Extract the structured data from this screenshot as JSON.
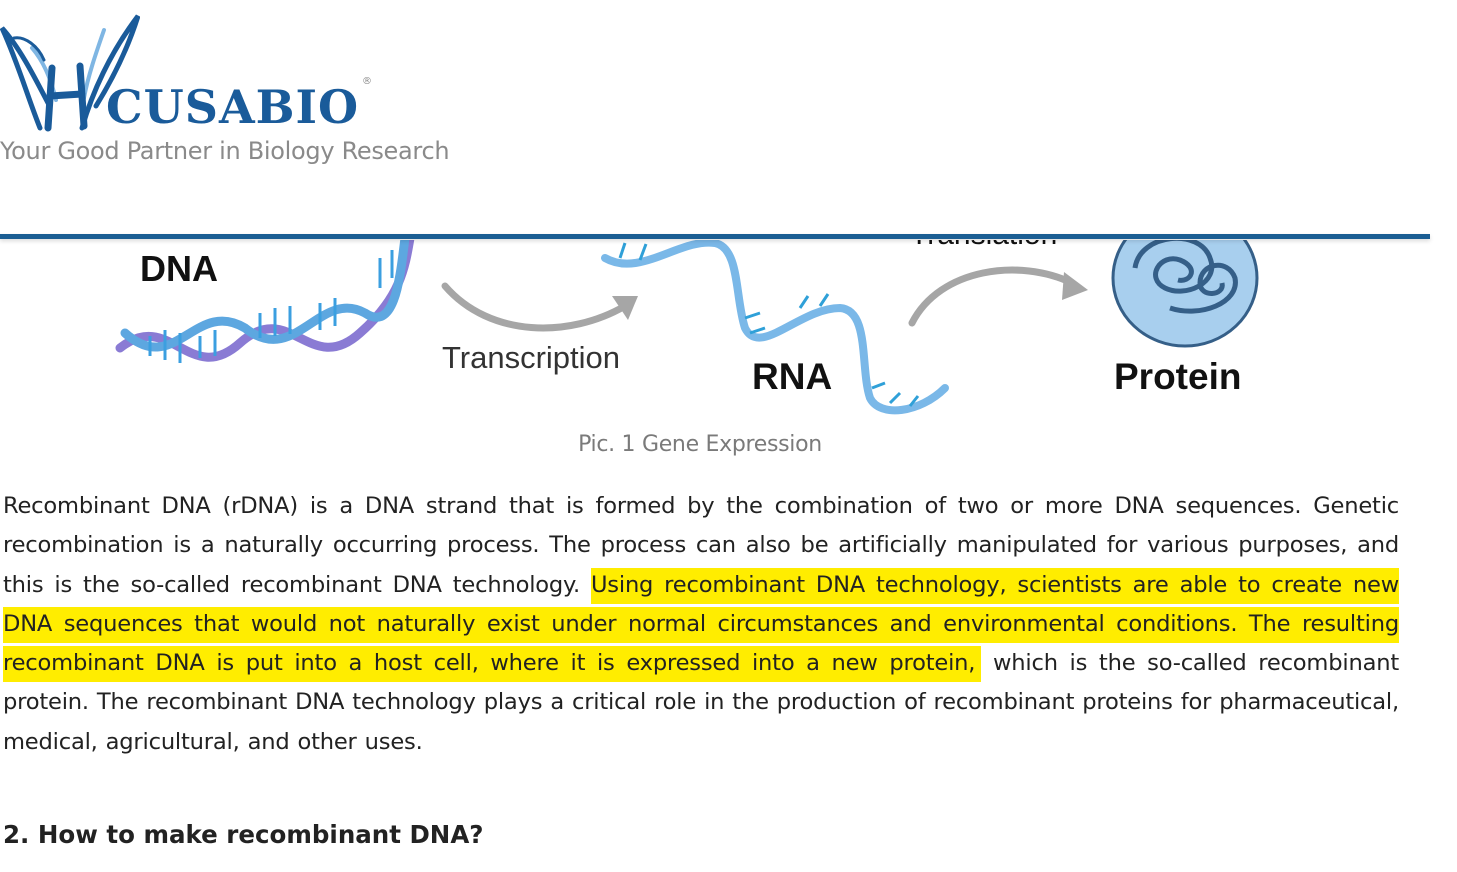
{
  "header": {
    "logo_text": "CUSABIO",
    "logo_reg": "®",
    "tagline": "Your Good Partner in Biology Research"
  },
  "figure": {
    "labels": {
      "dna": "DNA",
      "transcription": "Transcription",
      "rna": "RNA",
      "translation": "Translation",
      "protein": "Protein"
    },
    "caption": "Pic. 1 Gene Expression"
  },
  "article": {
    "paragraph_before": "Recombinant DNA (rDNA) is a DNA strand that is formed by the combination of two or more DNA sequences. Genetic recombination is a naturally occurring process. The process can also be artificially manipulated for various purposes, and this is the so-called recombinant DNA technology.",
    "paragraph_highlight": "Using recombinant DNA technology, scientists are able to create new DNA sequences that would not naturally exist under normal circumstances and environmental conditions. The resulting recombinant DNA is put into a host cell, where it is expressed into a new protein,",
    "paragraph_after": "which is the so-called recombinant protein. The recombinant DNA technology plays a critical role in the production of recombinant proteins for pharmaceutical, medical, agricultural, and other uses.",
    "heading": "2. How to make recombinant DNA?"
  },
  "colors": {
    "brand_blue": "#1b5e93",
    "highlight": "#ffed00"
  }
}
